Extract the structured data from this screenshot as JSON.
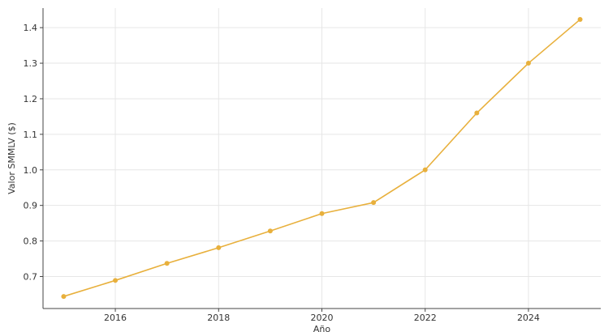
{
  "chart_data": {
    "type": "line",
    "title": "",
    "xlabel": "Año",
    "ylabel": "Valor SMMLV ($)",
    "grid": true,
    "legend": "none",
    "xlim": [
      2014.6,
      2025.4
    ],
    "ylim": [
      0.61,
      1.455
    ],
    "xticks": [
      2016,
      2018,
      2020,
      2022,
      2024
    ],
    "xtick_labels": [
      "2016",
      "2018",
      "2020",
      "2022",
      "2024"
    ],
    "yticks": [
      0.7,
      0.8,
      0.9,
      1.0,
      1.1,
      1.2,
      1.3,
      1.4
    ],
    "ytick_labels": [
      "0.7",
      "0.8",
      "0.9",
      "1.0",
      "1.1",
      "1.2",
      "1.3",
      "1.4"
    ],
    "series": [
      {
        "x": [
          2015,
          2016,
          2017,
          2018,
          2019,
          2020,
          2021,
          2022,
          2023,
          2024,
          2025
        ],
        "y": [
          0.644,
          0.689,
          0.737,
          0.781,
          0.828,
          0.877,
          0.908,
          1.0,
          1.16,
          1.3,
          1.423
        ],
        "color": "#e8b03c"
      }
    ]
  }
}
